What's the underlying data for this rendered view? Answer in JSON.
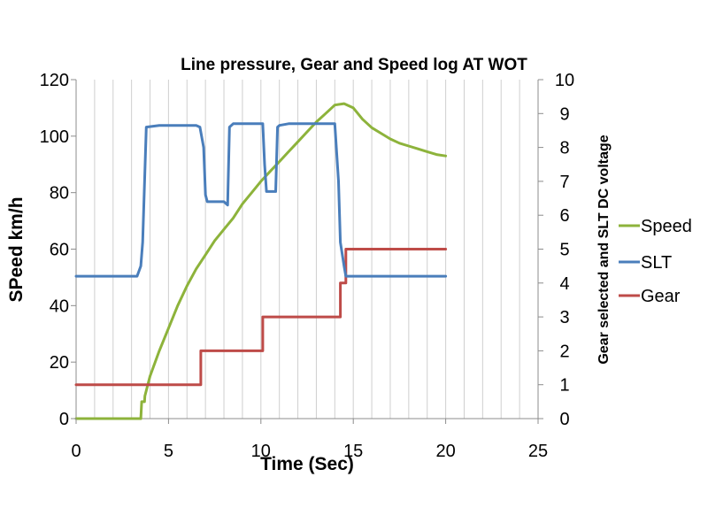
{
  "chart_data": {
    "type": "line",
    "title": "Line pressure, Gear and Speed log AT WOT",
    "xlabel": "Time (Sec)",
    "ylabel": "SPeed km/h",
    "y2label": "Gear selected and SLT DC voltage",
    "xlim": [
      0,
      25
    ],
    "ylim": [
      0,
      120
    ],
    "y2lim": [
      0,
      10
    ],
    "x_ticks": [
      "0",
      "5",
      "10",
      "15",
      "20",
      "25"
    ],
    "y_ticks": [
      "0",
      "20",
      "40",
      "60",
      "80",
      "100",
      "120"
    ],
    "y2_ticks": [
      "0",
      "1",
      "2",
      "3",
      "4",
      "5",
      "6",
      "7",
      "8",
      "9",
      "10"
    ],
    "grid": "vertical",
    "legend": "right",
    "series": [
      {
        "name": "Speed",
        "axis": "left",
        "color": "#8db33b",
        "x": [
          0,
          3.5,
          3.55,
          3.7,
          3.72,
          4.0,
          4.5,
          5.0,
          5.5,
          6.0,
          6.5,
          7.0,
          7.5,
          8.0,
          8.5,
          9.0,
          9.5,
          10.0,
          10.5,
          11.0,
          11.5,
          12.0,
          12.5,
          13.0,
          13.5,
          14.0,
          14.5,
          15.0,
          15.5,
          16.0,
          16.5,
          17.0,
          17.5,
          18.0,
          18.5,
          19.0,
          19.5,
          20.0
        ],
        "y": [
          0,
          0,
          6,
          6,
          8,
          15,
          24,
          32,
          40,
          47,
          53,
          58,
          63,
          67,
          71,
          76,
          80,
          84,
          87.5,
          91,
          94.5,
          98,
          101.5,
          105,
          108,
          111,
          111.5,
          110,
          106,
          103,
          101,
          99,
          97.5,
          96.5,
          95.5,
          94.5,
          93.5,
          93
        ]
      },
      {
        "name": "SLT",
        "axis": "right",
        "color": "#4a7ebb",
        "x": [
          0,
          3.0,
          3.3,
          3.5,
          3.6,
          3.8,
          4.5,
          5.5,
          6.5,
          6.7,
          6.9,
          7.0,
          7.1,
          7.5,
          8.0,
          8.2,
          8.3,
          8.5,
          9.0,
          9.5,
          10.0,
          10.1,
          10.2,
          10.3,
          10.5,
          10.8,
          10.9,
          11.0,
          11.5,
          12.5,
          13.5,
          14.0,
          14.2,
          14.3,
          14.5,
          14.6,
          14.7,
          15.0,
          16.0,
          17.0,
          18.0,
          19.0,
          20.0
        ],
        "y": [
          4.2,
          4.2,
          4.2,
          4.5,
          5.2,
          8.6,
          8.65,
          8.65,
          8.65,
          8.6,
          8.0,
          6.6,
          6.4,
          6.4,
          6.4,
          6.3,
          8.6,
          8.7,
          8.7,
          8.7,
          8.7,
          8.7,
          7.5,
          6.7,
          6.7,
          6.7,
          8.6,
          8.65,
          8.7,
          8.7,
          8.7,
          8.7,
          7.0,
          5.2,
          4.5,
          4.2,
          4.2,
          4.2,
          4.2,
          4.2,
          4.2,
          4.2,
          4.2
        ]
      },
      {
        "name": "Gear",
        "axis": "right",
        "color": "#be4b48",
        "x": [
          0,
          6.75,
          6.75,
          10.1,
          10.1,
          14.3,
          14.3,
          14.6,
          14.6,
          20
        ],
        "y": [
          1,
          1,
          2,
          2,
          3,
          3,
          4,
          4,
          5,
          5
        ]
      }
    ]
  }
}
